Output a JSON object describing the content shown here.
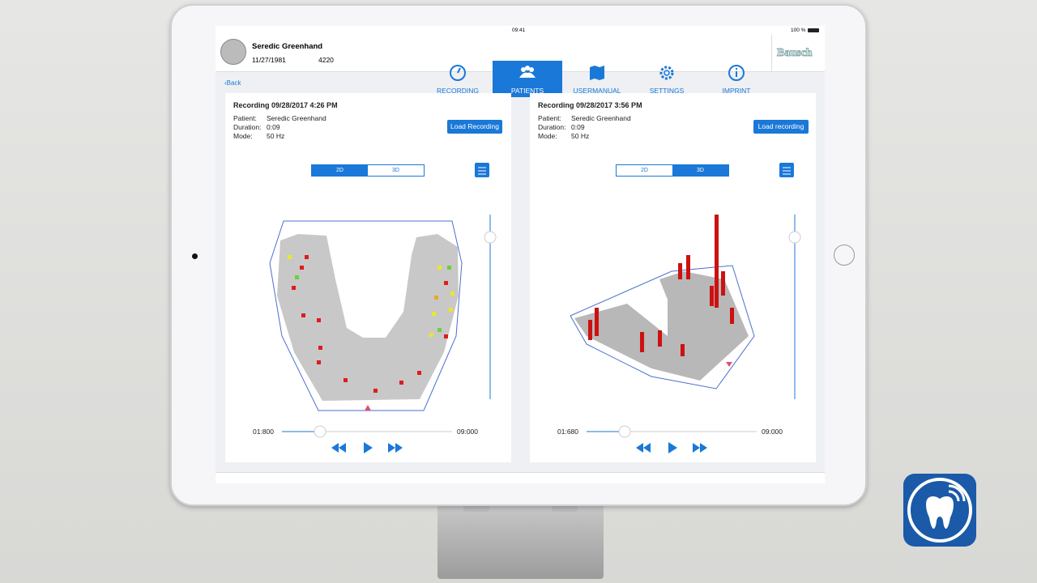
{
  "status": {
    "time": "09:41",
    "battery": "100 %"
  },
  "patient": {
    "name": "Seredic Greenhand",
    "dob": "11/27/1981",
    "id": "4220"
  },
  "nav": {
    "items": [
      "RECORDING",
      "PATIENTS",
      "USERMANUAL",
      "SETTINGS",
      "IMPRINT"
    ],
    "active": 1
  },
  "brand": "Bausch",
  "back": "Back",
  "panels": [
    {
      "title": "Recording 09/28/2017 4:26 PM",
      "fields": [
        {
          "label": "Patient:",
          "value": "Seredic Greenhand"
        },
        {
          "label": "Duration:",
          "value": "0:09"
        },
        {
          "label": "Mode:",
          "value": "50 Hz"
        }
      ],
      "button": "Load Recording",
      "modes": [
        "2D",
        "3D"
      ],
      "active_mode": 0,
      "time_start": "01:800",
      "time_end": "09:000"
    },
    {
      "title": "Recording 09/28/2017 3:56 PM",
      "fields": [
        {
          "label": "Patient:",
          "value": "Seredic Greenhand"
        },
        {
          "label": "Duration:",
          "value": "0:09"
        },
        {
          "label": "Mode:",
          "value": "50 Hz"
        }
      ],
      "button": "Load recording",
      "modes": [
        "2D",
        "3D"
      ],
      "active_mode": 1,
      "time_start": "01:680",
      "time_end": "09:000"
    }
  ]
}
